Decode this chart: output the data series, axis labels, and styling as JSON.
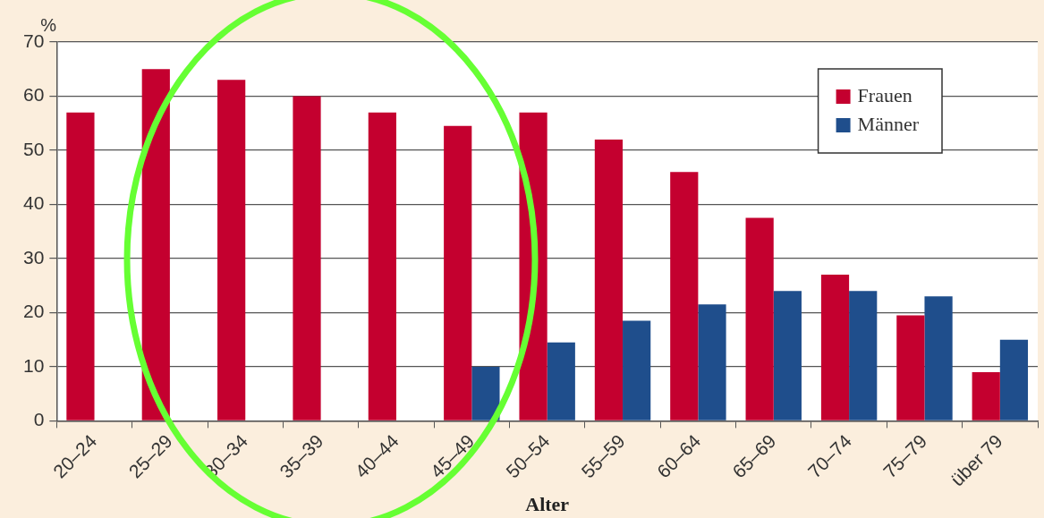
{
  "chart_data": {
    "type": "bar",
    "xlabel": "Alter",
    "ylabel": "%",
    "categories": [
      "20–24",
      "25–29",
      "30–34",
      "35–39",
      "40–44",
      "45–49",
      "50–54",
      "55–59",
      "60–64",
      "65–69",
      "70–74",
      "75–79",
      "über 79"
    ],
    "series": [
      {
        "name": "Frauen",
        "color": "#c4002f",
        "values": [
          57,
          65,
          63,
          60,
          57,
          54.5,
          57,
          52,
          46,
          37.5,
          27,
          19.5,
          9
        ]
      },
      {
        "name": "Männer",
        "color": "#1f4e8c",
        "values": [
          null,
          null,
          null,
          null,
          null,
          10,
          14.5,
          18.5,
          21.5,
          24,
          24,
          23,
          15
        ]
      }
    ],
    "ylim": [
      0,
      70
    ],
    "yticks": [
      0,
      10,
      20,
      30,
      40,
      50,
      60,
      70
    ],
    "grid": "y",
    "legend": "top right"
  }
}
